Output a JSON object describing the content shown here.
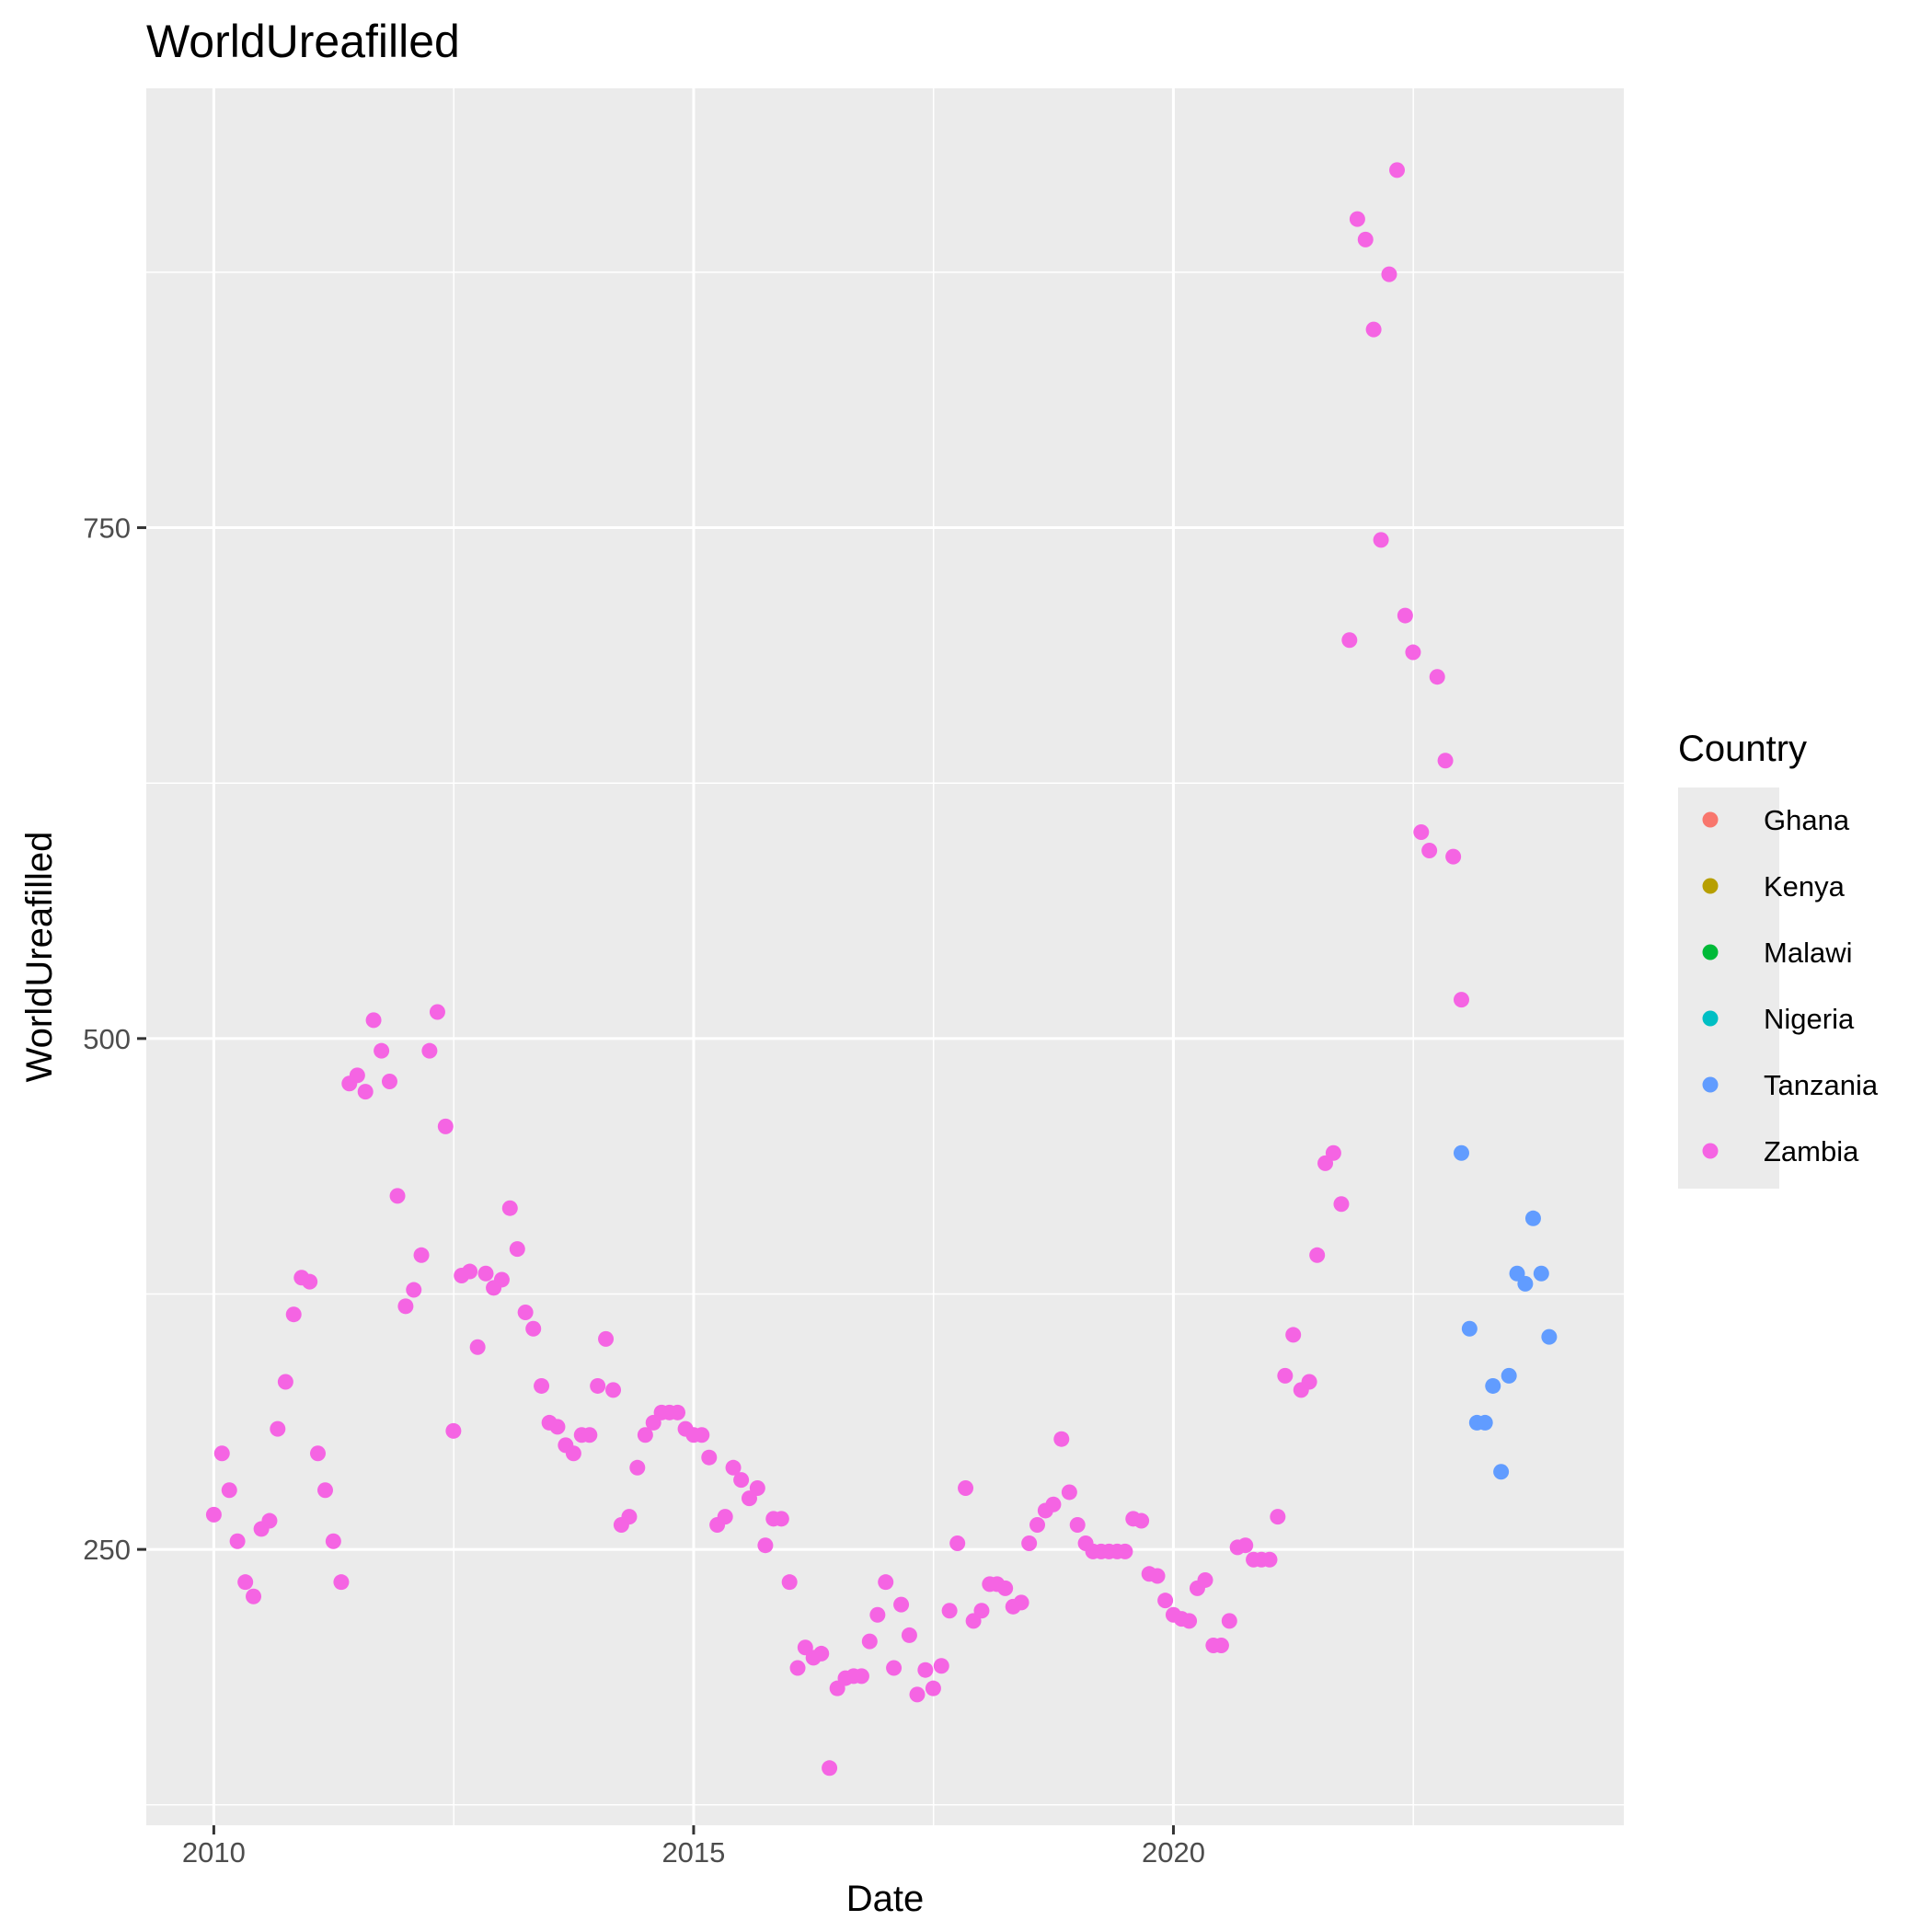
{
  "chart_data": {
    "type": "scatter",
    "title": "WorldUreafilled",
    "xlabel": "Date",
    "ylabel": "WorldUreafilled",
    "x_range": [
      "2009-04-19",
      "2024-09-10"
    ],
    "y_range": [
      115,
      965
    ],
    "x_ticks": [
      {
        "label": "2010",
        "value": "2010-01-01"
      },
      {
        "label": "2015",
        "value": "2015-01-01"
      },
      {
        "label": "2020",
        "value": "2020-01-01"
      }
    ],
    "y_ticks": [
      {
        "label": "250",
        "value": 250
      },
      {
        "label": "500",
        "value": 500
      },
      {
        "label": "750",
        "value": 750
      }
    ],
    "grid": true,
    "legend": {
      "title": "Country",
      "placement": "right",
      "entries": [
        {
          "name": "Ghana",
          "color": "#F8766D"
        },
        {
          "name": "Kenya",
          "color": "#B79F00"
        },
        {
          "name": "Malawi",
          "color": "#00BA38"
        },
        {
          "name": "Nigeria",
          "color": "#00BFC4"
        },
        {
          "name": "Tanzania",
          "color": "#619CFF"
        },
        {
          "name": "Zambia",
          "color": "#F564E3"
        }
      ]
    },
    "series": [
      {
        "name": "Ghana",
        "color": "#F8766D",
        "points": []
      },
      {
        "name": "Kenya",
        "color": "#B79F00",
        "points": []
      },
      {
        "name": "Malawi",
        "color": "#00BA38",
        "points": []
      },
      {
        "name": "Nigeria",
        "color": "#00BFC4",
        "points": []
      },
      {
        "name": "Tanzania",
        "color": "#619CFF",
        "points": [
          [
            "2023-01-01",
            444
          ],
          [
            "2023-02-01",
            358
          ],
          [
            "2023-03-01",
            312
          ],
          [
            "2023-04-01",
            312
          ],
          [
            "2023-05-01",
            330
          ],
          [
            "2023-06-01",
            288
          ],
          [
            "2023-07-01",
            335
          ],
          [
            "2023-08-01",
            385
          ],
          [
            "2023-09-01",
            380
          ],
          [
            "2023-10-01",
            412
          ],
          [
            "2023-11-01",
            385
          ],
          [
            "2023-12-01",
            354
          ]
        ]
      },
      {
        "name": "Zambia",
        "color": "#F564E3",
        "points": [
          [
            "2010-01-01",
            267
          ],
          [
            "2010-02-01",
            297
          ],
          [
            "2010-03-01",
            279
          ],
          [
            "2010-04-01",
            254
          ],
          [
            "2010-05-01",
            234
          ],
          [
            "2010-06-01",
            227
          ],
          [
            "2010-07-01",
            260
          ],
          [
            "2010-08-01",
            264
          ],
          [
            "2010-09-01",
            309
          ],
          [
            "2010-10-01",
            332
          ],
          [
            "2010-11-01",
            365
          ],
          [
            "2010-12-01",
            383
          ],
          [
            "2011-01-01",
            381
          ],
          [
            "2011-02-01",
            297
          ],
          [
            "2011-03-01",
            279
          ],
          [
            "2011-04-01",
            254
          ],
          [
            "2011-05-01",
            234
          ],
          [
            "2011-06-01",
            478
          ],
          [
            "2011-07-01",
            482
          ],
          [
            "2011-08-01",
            474
          ],
          [
            "2011-09-01",
            509
          ],
          [
            "2011-10-01",
            494
          ],
          [
            "2011-11-01",
            479
          ],
          [
            "2011-12-01",
            423
          ],
          [
            "2012-01-01",
            369
          ],
          [
            "2012-02-01",
            377
          ],
          [
            "2012-03-01",
            394
          ],
          [
            "2012-04-01",
            494
          ],
          [
            "2012-05-01",
            513
          ],
          [
            "2012-06-01",
            457
          ],
          [
            "2012-07-01",
            308
          ],
          [
            "2012-08-01",
            384
          ],
          [
            "2012-09-01",
            386
          ],
          [
            "2012-10-01",
            349
          ],
          [
            "2012-11-01",
            385
          ],
          [
            "2012-12-01",
            378
          ],
          [
            "2013-01-01",
            382
          ],
          [
            "2013-02-01",
            417
          ],
          [
            "2013-03-01",
            397
          ],
          [
            "2013-04-01",
            366
          ],
          [
            "2013-05-01",
            358
          ],
          [
            "2013-06-01",
            330
          ],
          [
            "2013-07-01",
            312
          ],
          [
            "2013-08-01",
            310
          ],
          [
            "2013-09-01",
            301
          ],
          [
            "2013-10-01",
            297
          ],
          [
            "2013-11-01",
            306
          ],
          [
            "2013-12-01",
            306
          ],
          [
            "2014-01-01",
            330
          ],
          [
            "2014-02-01",
            353
          ],
          [
            "2014-03-01",
            328
          ],
          [
            "2014-04-01",
            262
          ],
          [
            "2014-05-01",
            266
          ],
          [
            "2014-06-01",
            290
          ],
          [
            "2014-07-01",
            306
          ],
          [
            "2014-08-01",
            312
          ],
          [
            "2014-09-01",
            317
          ],
          [
            "2014-10-01",
            317
          ],
          [
            "2014-11-01",
            317
          ],
          [
            "2014-12-01",
            309
          ],
          [
            "2015-01-01",
            306
          ],
          [
            "2015-02-01",
            306
          ],
          [
            "2015-03-01",
            295
          ],
          [
            "2015-04-01",
            262
          ],
          [
            "2015-05-01",
            266
          ],
          [
            "2015-06-01",
            290
          ],
          [
            "2015-07-01",
            284
          ],
          [
            "2015-08-01",
            275
          ],
          [
            "2015-09-01",
            280
          ],
          [
            "2015-10-01",
            252
          ],
          [
            "2015-11-01",
            265
          ],
          [
            "2015-12-01",
            265
          ],
          [
            "2016-01-01",
            234
          ],
          [
            "2016-02-01",
            192
          ],
          [
            "2016-03-01",
            202
          ],
          [
            "2016-04-01",
            197
          ],
          [
            "2016-05-01",
            199
          ],
          [
            "2016-06-01",
            143
          ],
          [
            "2016-07-01",
            182
          ],
          [
            "2016-08-01",
            187
          ],
          [
            "2016-09-01",
            188
          ],
          [
            "2016-10-01",
            188
          ],
          [
            "2016-11-01",
            205
          ],
          [
            "2016-12-01",
            218
          ],
          [
            "2017-01-01",
            234
          ],
          [
            "2017-02-01",
            192
          ],
          [
            "2017-03-01",
            223
          ],
          [
            "2017-04-01",
            208
          ],
          [
            "2017-05-01",
            179
          ],
          [
            "2017-06-01",
            191
          ],
          [
            "2017-07-01",
            182
          ],
          [
            "2017-08-01",
            193
          ],
          [
            "2017-09-01",
            220
          ],
          [
            "2017-10-01",
            253
          ],
          [
            "2017-11-01",
            280
          ],
          [
            "2017-12-01",
            215
          ],
          [
            "2018-01-01",
            220
          ],
          [
            "2018-02-01",
            233
          ],
          [
            "2018-03-01",
            233
          ],
          [
            "2018-04-01",
            231
          ],
          [
            "2018-05-01",
            222
          ],
          [
            "2018-06-01",
            224
          ],
          [
            "2018-07-01",
            253
          ],
          [
            "2018-08-01",
            262
          ],
          [
            "2018-09-01",
            269
          ],
          [
            "2018-10-01",
            272
          ],
          [
            "2018-11-01",
            304
          ],
          [
            "2018-12-01",
            278
          ],
          [
            "2019-01-01",
            262
          ],
          [
            "2019-02-01",
            253
          ],
          [
            "2019-03-01",
            249
          ],
          [
            "2019-04-01",
            249
          ],
          [
            "2019-05-01",
            249
          ],
          [
            "2019-06-01",
            249
          ],
          [
            "2019-07-01",
            249
          ],
          [
            "2019-08-01",
            265
          ],
          [
            "2019-09-01",
            264
          ],
          [
            "2019-10-01",
            238
          ],
          [
            "2019-11-01",
            237
          ],
          [
            "2019-12-01",
            225
          ],
          [
            "2020-01-01",
            218
          ],
          [
            "2020-02-01",
            216
          ],
          [
            "2020-03-01",
            215
          ],
          [
            "2020-04-01",
            231
          ],
          [
            "2020-05-01",
            235
          ],
          [
            "2020-06-01",
            203
          ],
          [
            "2020-07-01",
            203
          ],
          [
            "2020-08-01",
            215
          ],
          [
            "2020-09-01",
            251
          ],
          [
            "2020-10-01",
            252
          ],
          [
            "2020-11-01",
            245
          ],
          [
            "2020-12-01",
            245
          ],
          [
            "2021-01-01",
            245
          ],
          [
            "2021-02-01",
            266
          ],
          [
            "2021-03-01",
            335
          ],
          [
            "2021-04-01",
            355
          ],
          [
            "2021-05-01",
            328
          ],
          [
            "2021-06-01",
            332
          ],
          [
            "2021-07-01",
            394
          ],
          [
            "2021-08-01",
            439
          ],
          [
            "2021-09-01",
            444
          ],
          [
            "2021-10-01",
            419
          ],
          [
            "2021-11-01",
            695
          ],
          [
            "2021-12-01",
            901
          ],
          [
            "2022-01-01",
            891
          ],
          [
            "2022-02-01",
            847
          ],
          [
            "2022-03-01",
            744
          ],
          [
            "2022-04-01",
            874
          ],
          [
            "2022-05-01",
            925
          ],
          [
            "2022-06-01",
            707
          ],
          [
            "2022-07-01",
            689
          ],
          [
            "2022-08-01",
            601
          ],
          [
            "2022-09-01",
            592
          ],
          [
            "2022-10-01",
            677
          ],
          [
            "2022-11-01",
            636
          ],
          [
            "2022-12-01",
            589
          ],
          [
            "2023-01-01",
            519
          ]
        ]
      }
    ]
  }
}
